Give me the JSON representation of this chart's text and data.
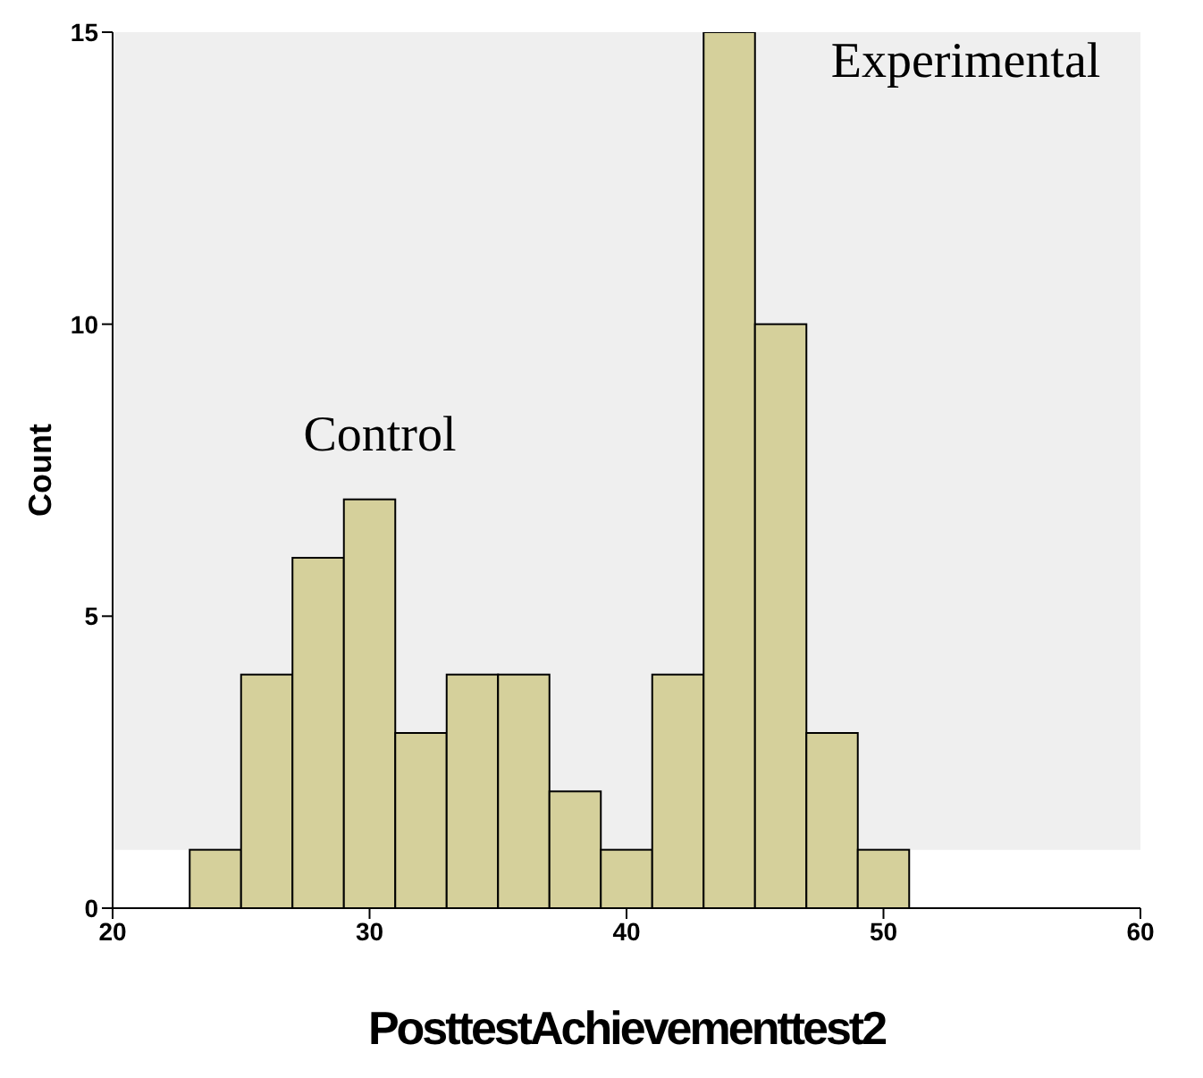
{
  "chart_data": {
    "type": "histogram",
    "xlabel": "PosttestAchievementtest2",
    "ylabel": "Count",
    "bins": [
      23,
      25,
      27,
      29,
      31,
      33,
      35,
      37,
      39,
      41,
      43,
      45,
      47,
      49,
      51
    ],
    "values": [
      1,
      4,
      6,
      7,
      3,
      4,
      4,
      2,
      1,
      4,
      15,
      10,
      3,
      1
    ],
    "color": "#d5d09b",
    "xlim": [
      20,
      60
    ],
    "xticks": [
      20,
      30,
      40,
      50,
      60
    ],
    "ylim": [
      0,
      15
    ],
    "yticks": [
      0,
      5,
      10,
      15
    ],
    "bands": [
      {
        "axis": "y",
        "from": 1,
        "to": 15,
        "color": "#efefef"
      }
    ],
    "annotations": [
      "Control",
      "Experimental"
    ]
  }
}
